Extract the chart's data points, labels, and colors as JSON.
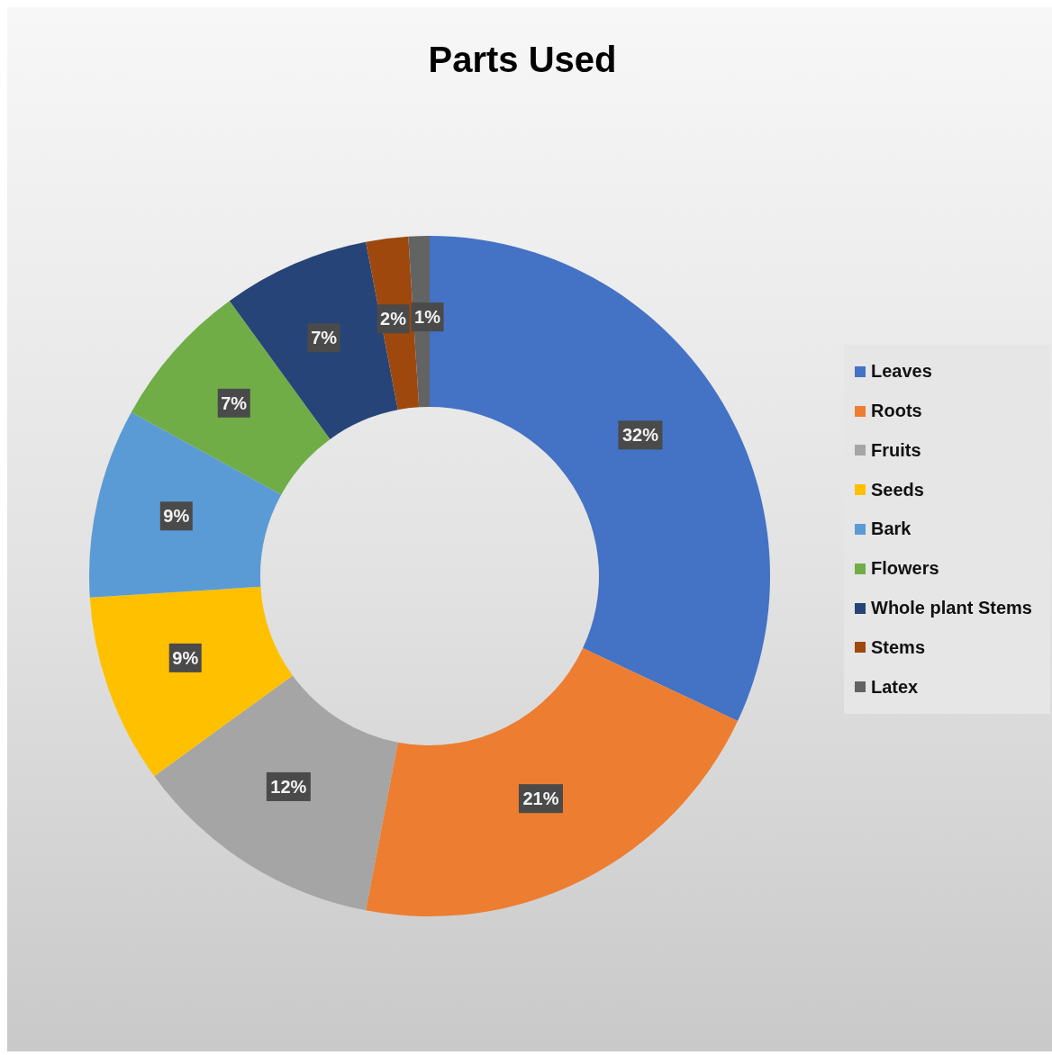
{
  "chart_data": {
    "type": "donut",
    "title": "Parts Used",
    "categories": [
      "Leaves",
      "Roots",
      "Fruits",
      "Seeds",
      "Bark",
      "Flowers",
      "Whole plant Stems",
      "Stems",
      "Latex"
    ],
    "values": [
      32,
      21,
      12,
      9,
      9,
      7,
      7,
      2,
      1
    ],
    "colors": [
      "#4472c4",
      "#ed7d31",
      "#a5a5a5",
      "#ffc000",
      "#5b9bd5",
      "#70ad47",
      "#264478",
      "#9e480e",
      "#636363"
    ],
    "value_labels": [
      "32%",
      "21%",
      "12%",
      "9%",
      "9%",
      "7%",
      "7%",
      "2%",
      "1%"
    ],
    "legend": "right"
  }
}
